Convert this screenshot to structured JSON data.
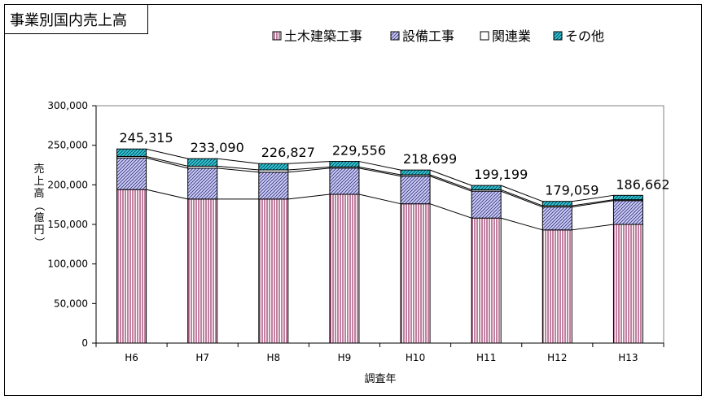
{
  "chart_data": {
    "type": "bar",
    "stacked": true,
    "title": "事業別国内売上高",
    "ylabel": "売上高（億円）",
    "xlabel": "調査年",
    "categories": [
      "H6",
      "H7",
      "H8",
      "H9",
      "H10",
      "H11",
      "H12",
      "H13"
    ],
    "ylim": [
      0,
      300000
    ],
    "yticks": [
      0,
      50000,
      100000,
      150000,
      200000,
      250000,
      300000
    ],
    "ytick_labels": [
      "0",
      "50,000",
      "100,000",
      "150,000",
      "200,000",
      "250,000",
      "300,000"
    ],
    "legend_position": "top",
    "series": [
      {
        "name": "土木建築工事",
        "pattern": "vertical-lines",
        "color": "#800040",
        "values": [
          194000,
          182000,
          182000,
          188000,
          176000,
          158000,
          143000,
          150000
        ]
      },
      {
        "name": "設備工事",
        "pattern": "diagonal-hatch",
        "color": "#9999cc",
        "values": [
          40000,
          39000,
          34000,
          33000,
          35000,
          34000,
          29000,
          30000
        ]
      },
      {
        "name": "関連業",
        "pattern": "none",
        "color": "#ffffff",
        "values": [
          1815,
          2590,
          2827,
          1556,
          1699,
          1699,
          1559,
          1162
        ]
      },
      {
        "name": "その他",
        "pattern": "diagonal-hatch",
        "color": "#33cccc",
        "values": [
          9500,
          9500,
          8000,
          7000,
          6000,
          5500,
          5500,
          5500
        ]
      }
    ],
    "totals": [
      245315,
      233090,
      226827,
      229556,
      218699,
      199199,
      179059,
      186662
    ],
    "total_labels": [
      "245,315",
      "233,090",
      "226,827",
      "229,556",
      "218,699",
      "199,199",
      "179,059",
      "186,662"
    ],
    "connector_lines": true
  }
}
